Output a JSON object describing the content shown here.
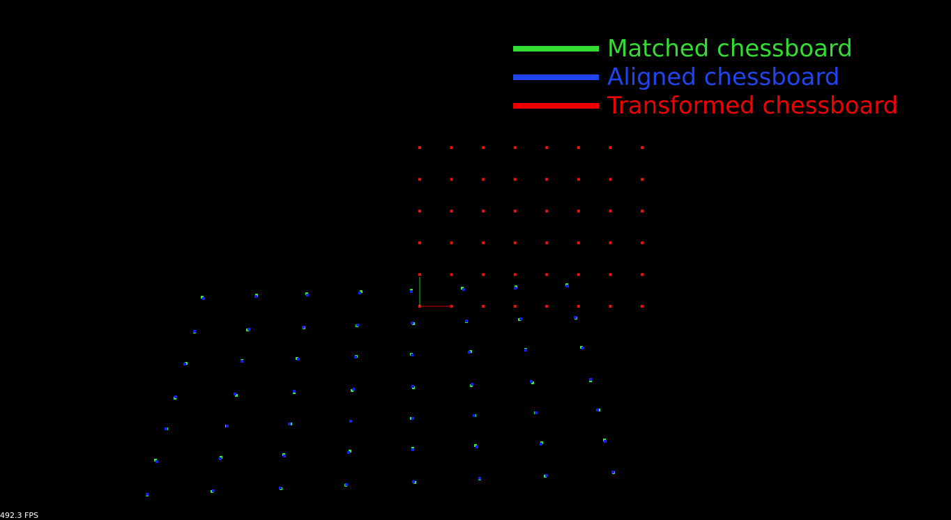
{
  "viewer": {
    "background": "#000000",
    "fps_label": "492.3 FPS"
  },
  "legend": [
    {
      "label": "Matched chessboard",
      "color": "#33dd33"
    },
    {
      "label": "Aligned chessboard",
      "color": "#2244ee"
    },
    {
      "label": "Transformed chessboard",
      "color": "#ee0000"
    }
  ],
  "chessboards": {
    "transformed_color": "#ee1111",
    "matched_color": "#33ee33",
    "aligned_color": "#1122ee",
    "transformed_grid": {
      "cols": 8,
      "rows": 6
    },
    "projected_grid": {
      "cols": 8,
      "rows": 7
    }
  },
  "axes": {
    "x_color": "#dd0000",
    "y_color": "#22cc22"
  }
}
